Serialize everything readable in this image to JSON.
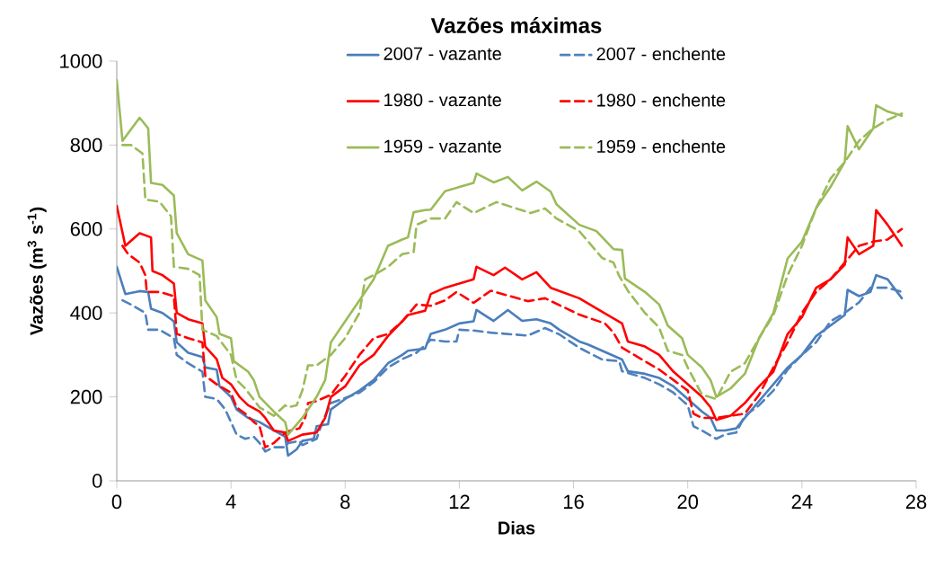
{
  "chart_data": {
    "type": "line",
    "title": "Vazões máximas",
    "xlabel": "Dias",
    "ylabel": "Vazões (m$^{3}$ s$^{-1}$)",
    "xlim": [
      0,
      28
    ],
    "ylim": [
      0,
      1000
    ],
    "xticks": [
      0,
      4,
      8,
      12,
      16,
      20,
      24,
      28
    ],
    "yticks": [
      0,
      200,
      400,
      600,
      800,
      1000
    ],
    "grid": false,
    "legend": "top",
    "marker": "none",
    "series": [
      {
        "name": "2007 - vazante",
        "color": "#4a7ebb",
        "line_style": "solid",
        "x": [
          0,
          0.3,
          0.8,
          1.1,
          1.2,
          1.6,
          2.0,
          2.1,
          2.5,
          3.0,
          3.1,
          3.5,
          3.6,
          4.0,
          4.2,
          4.6,
          5.0,
          5.5,
          5.9,
          6.0,
          6.3,
          6.5,
          6.9,
          7.0,
          7.4,
          7.5,
          8.0,
          8.5,
          9.0,
          9.5,
          10,
          10.2,
          10.8,
          11,
          11.5,
          12,
          12.5,
          12.6,
          13.2,
          13.7,
          14.2,
          14.7,
          15.2,
          15.5,
          16.2,
          16.5,
          17,
          17.5,
          17.7,
          17.9,
          18.5,
          19,
          19.5,
          20,
          20.5,
          20.8,
          21,
          21.3,
          21.7,
          22,
          22.5,
          23,
          23.5,
          24,
          24.5,
          25,
          25.5,
          25.6,
          26,
          26.4,
          26.6,
          27,
          27.5
        ],
        "values": [
          510,
          445,
          452,
          450,
          410,
          400,
          380,
          330,
          305,
          295,
          270,
          265,
          225,
          200,
          170,
          150,
          140,
          120,
          105,
          60,
          75,
          95,
          100,
          130,
          135,
          170,
          195,
          215,
          240,
          280,
          300,
          310,
          315,
          350,
          360,
          375,
          380,
          407,
          381,
          407,
          381,
          385,
          375,
          360,
          332,
          325,
          310,
          295,
          289,
          261,
          255,
          245,
          225,
          195,
          165,
          150,
          120,
          120,
          125,
          150,
          190,
          230,
          270,
          300,
          345,
          370,
          395,
          455,
          440,
          450,
          490,
          480,
          435
        ]
      },
      {
        "name": "2007 - enchente",
        "color": "#4f81bd",
        "line_style": "dashed",
        "x": [
          0.2,
          0.5,
          1.0,
          1.1,
          1.5,
          2.0,
          2.1,
          2.5,
          3.0,
          3.1,
          3.5,
          3.8,
          4.2,
          4.5,
          4.8,
          5.0,
          5.2,
          5.5,
          5.9,
          6.0,
          6.4,
          6.5,
          7.0,
          7.2,
          7.5,
          8.5,
          9,
          9.5,
          10,
          10.5,
          11,
          11.5,
          11.9,
          12,
          12.5,
          13.1,
          14.4,
          15,
          15.5,
          16.2,
          17,
          17.6,
          17.7,
          18,
          18.5,
          19,
          19.5,
          20,
          20.2,
          20.5,
          21,
          21.3,
          21.7,
          22,
          22.5,
          23,
          23.5,
          24,
          24.5,
          25,
          25.5,
          26,
          26.4,
          27,
          27.5
        ],
        "values": [
          430,
          420,
          400,
          360,
          360,
          340,
          300,
          280,
          260,
          200,
          195,
          170,
          110,
          100,
          105,
          90,
          70,
          80,
          80,
          90,
          95,
          85,
          100,
          140,
          185,
          210,
          235,
          270,
          290,
          305,
          336,
          332,
          332,
          360,
          358,
          353,
          346,
          364,
          349,
          317,
          289,
          285,
          261,
          255,
          245,
          230,
          210,
          180,
          130,
          120,
          100,
          110,
          115,
          155,
          180,
          215,
          265,
          300,
          330,
          380,
          400,
          425,
          460,
          460,
          450
        ]
      },
      {
        "name": "1980 - vazante",
        "color": "#ff0000",
        "line_style": "solid",
        "x": [
          0,
          0.3,
          0.8,
          1.2,
          1.25,
          1.6,
          2.0,
          2.1,
          2.5,
          3.0,
          3.1,
          3.5,
          3.7,
          4.0,
          4.3,
          4.6,
          5.0,
          5.2,
          5.5,
          5.9,
          6.0,
          6.5,
          7.0,
          7.3,
          7.5,
          7.7,
          8,
          8.5,
          9,
          9.5,
          10,
          10.2,
          10.8,
          11,
          11.5,
          12,
          12.5,
          12.6,
          13.2,
          13.6,
          14.2,
          14.7,
          15.2,
          16.2,
          17,
          17.7,
          17.9,
          18.5,
          19,
          19.5,
          20,
          20.5,
          20.8,
          21,
          21.5,
          22,
          22.5,
          23,
          23.5,
          24,
          24.5,
          25,
          25.5,
          25.6,
          26,
          26.5,
          26.6,
          27,
          27.5
        ],
        "values": [
          655,
          560,
          590,
          580,
          500,
          490,
          470,
          400,
          385,
          375,
          320,
          290,
          245,
          230,
          200,
          180,
          165,
          150,
          120,
          115,
          95,
          110,
          115,
          150,
          200,
          210,
          225,
          275,
          300,
          345,
          380,
          395,
          405,
          445,
          460,
          470,
          480,
          510,
          490,
          508,
          480,
          497,
          460,
          435,
          403,
          375,
          332,
          320,
          300,
          260,
          230,
          200,
          175,
          145,
          155,
          185,
          225,
          260,
          350,
          390,
          460,
          480,
          515,
          580,
          540,
          560,
          645,
          610,
          560
        ]
      },
      {
        "name": "1980 - enchente",
        "color": "#ff0000",
        "line_style": "dashed",
        "x": [
          0.2,
          0.4,
          0.8,
          1.0,
          1.05,
          1.5,
          2.0,
          2.1,
          2.5,
          3.0,
          3.1,
          3.5,
          4.0,
          4.2,
          4.5,
          4.8,
          5.0,
          5.2,
          5.5,
          5.9,
          6.1,
          6.4,
          6.6,
          6.7,
          7.0,
          7.5,
          8,
          8.5,
          9,
          9.5,
          10,
          10.5,
          11,
          11.5,
          11.9,
          12.5,
          13.1,
          14.4,
          15,
          16.2,
          17.1,
          17.4,
          17.7,
          18,
          18.5,
          19,
          19.5,
          20,
          20.2,
          20.5,
          21,
          21.5,
          22,
          22.5,
          23,
          23.5,
          24,
          24.5,
          25,
          25.5,
          26,
          26.5,
          27,
          27.5
        ],
        "values": [
          560,
          540,
          520,
          490,
          450,
          450,
          440,
          350,
          340,
          330,
          250,
          230,
          210,
          175,
          160,
          140,
          130,
          80,
          90,
          115,
          120,
          125,
          150,
          185,
          190,
          205,
          250,
          300,
          340,
          350,
          380,
          420,
          417,
          430,
          450,
          424,
          453,
          428,
          435,
          396,
          375,
          353,
          317,
          305,
          285,
          265,
          240,
          215,
          160,
          150,
          150,
          155,
          160,
          205,
          270,
          330,
          400,
          450,
          480,
          520,
          560,
          570,
          575,
          600
        ]
      },
      {
        "name": "1959 - vazante",
        "color": "#9bbb59",
        "line_style": "solid",
        "x": [
          0,
          0.2,
          0.8,
          1.1,
          1.2,
          1.6,
          2.0,
          2.1,
          2.5,
          3.0,
          3.1,
          3.5,
          3.6,
          4.0,
          4.1,
          4.6,
          4.8,
          5.0,
          5.5,
          5.9,
          6.0,
          6.5,
          7.0,
          7.3,
          7.5,
          8,
          8.5,
          9,
          9.5,
          10,
          10.2,
          10.4,
          10.8,
          11,
          11.5,
          12,
          12.5,
          12.6,
          13.2,
          13.7,
          14.2,
          14.7,
          15.2,
          15.4,
          16.2,
          16.8,
          17.4,
          17.7,
          17.8,
          18.5,
          19,
          19.3,
          19.8,
          20,
          20.5,
          20.8,
          21,
          21.5,
          22,
          22.5,
          23,
          23.5,
          24,
          24.5,
          25,
          25.5,
          25.6,
          26,
          26.5,
          26.6,
          27,
          27.5
        ],
        "values": [
          955,
          810,
          865,
          840,
          710,
          705,
          680,
          590,
          540,
          525,
          430,
          390,
          350,
          340,
          285,
          260,
          240,
          200,
          165,
          140,
          110,
          150,
          200,
          240,
          330,
          380,
          430,
          480,
          560,
          575,
          580,
          640,
          645,
          646,
          690,
          700,
          710,
          732,
          711,
          724,
          692,
          713,
          689,
          659,
          610,
          595,
          552,
          550,
          482,
          450,
          420,
          370,
          340,
          300,
          270,
          240,
          200,
          220,
          255,
          340,
          400,
          530,
          570,
          650,
          700,
          760,
          845,
          790,
          840,
          895,
          880,
          870
        ]
      },
      {
        "name": "1959 - enchente",
        "color": "#9bbb59",
        "line_style": "dashed",
        "x": [
          0.2,
          0.5,
          0.9,
          1.0,
          1.5,
          1.9,
          2.0,
          2.5,
          2.9,
          3.0,
          3.5,
          4.0,
          4.2,
          4.5,
          5.0,
          5.5,
          5.9,
          6.0,
          6.3,
          6.5,
          6.7,
          7.0,
          7.5,
          8,
          8.5,
          8.7,
          9,
          9.5,
          10,
          10.4,
          10.5,
          11,
          11.5,
          11.9,
          12.5,
          13.3,
          14.5,
          15,
          15.4,
          16.2,
          17,
          17.4,
          17.6,
          17.9,
          18.5,
          19,
          19.3,
          19.8,
          20,
          20.5,
          21,
          21.5,
          22,
          22.5,
          23,
          23.5,
          24,
          24.5,
          25,
          25.5,
          26,
          26.5,
          27,
          27.5
        ],
        "values": [
          800,
          800,
          780,
          670,
          665,
          630,
          510,
          505,
          490,
          360,
          345,
          300,
          240,
          220,
          175,
          155,
          180,
          175,
          180,
          215,
          275,
          275,
          300,
          340,
          400,
          480,
          490,
          510,
          540,
          545,
          610,
          625,
          625,
          664,
          638,
          664,
          638,
          649,
          625,
          595,
          531,
          520,
          488,
          453,
          400,
          365,
          310,
          300,
          270,
          205,
          195,
          260,
          280,
          340,
          395,
          490,
          560,
          650,
          720,
          760,
          810,
          840,
          860,
          875
        ]
      }
    ]
  }
}
